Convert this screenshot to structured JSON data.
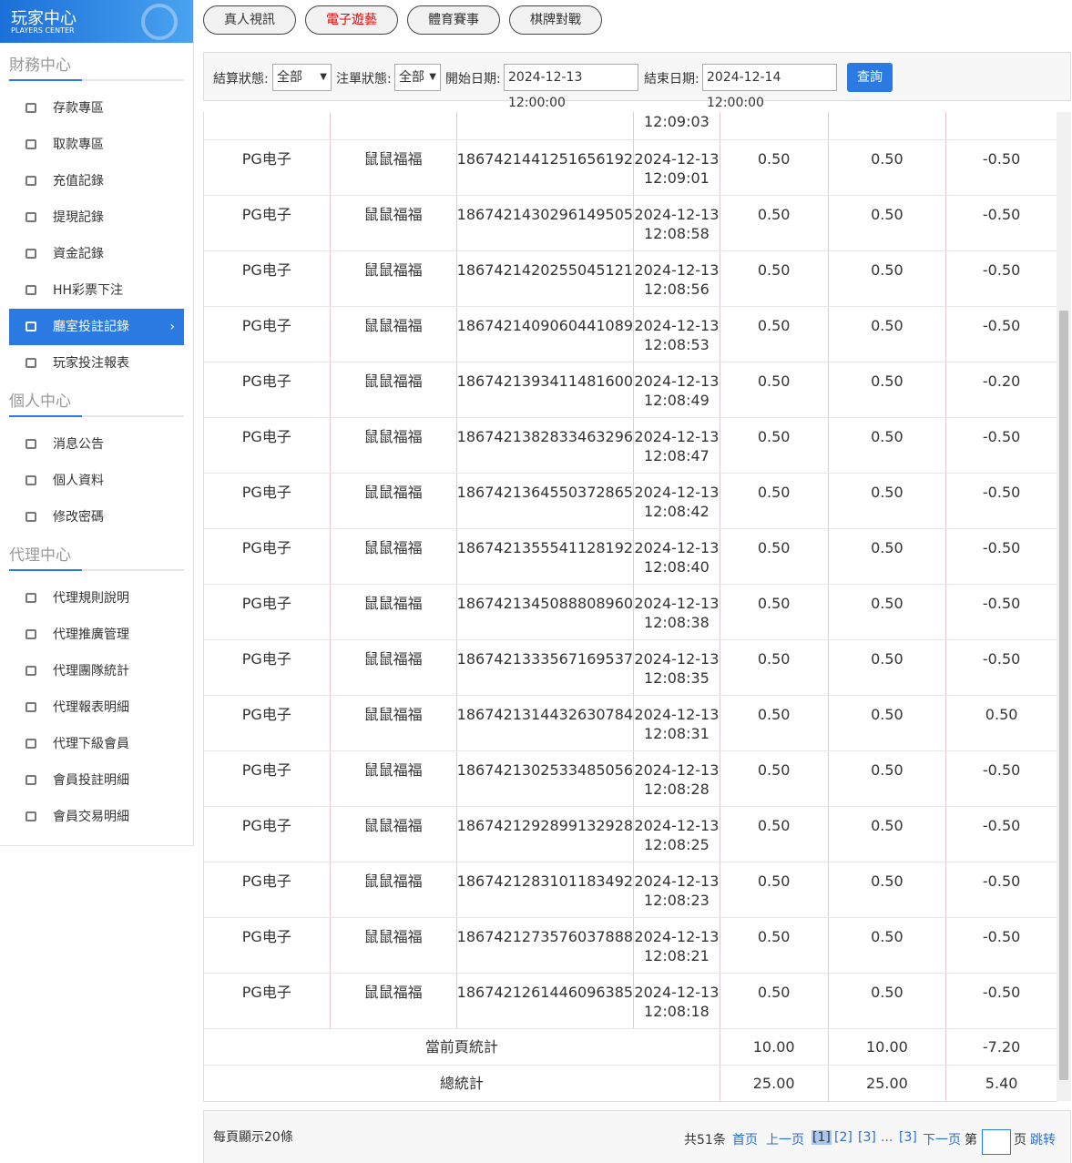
{
  "sidebar": {
    "logo": {
      "title": "玩家中心",
      "subtitle": "PLAYERS CENTER"
    },
    "sections": [
      {
        "title": "財務中心",
        "items": [
          "存款專區",
          "取款專區",
          "充值記錄",
          "提現記錄",
          "資金記錄",
          "HH彩票下注",
          "廳室投註記錄",
          "玩家投注報表"
        ],
        "active": 6
      },
      {
        "title": "個人中心",
        "items": [
          "消息公告",
          "個人資料",
          "修改密碼"
        ]
      },
      {
        "title": "代理中心",
        "items": [
          "代理規則說明",
          "代理推廣管理",
          "代理團隊統計",
          "代理報表明細",
          "代理下級會員",
          "會員投註明細",
          "會員交易明細"
        ]
      }
    ]
  },
  "tabs": {
    "items": [
      "真人視訊",
      "電子遊藝",
      "體育賽事",
      "棋牌對戰"
    ],
    "active": 1
  },
  "filters": {
    "settle_label": "結算狀態:",
    "settle_value": "全部",
    "status_label": "注單狀態:",
    "status_value": "全部",
    "start_label": "開始日期:",
    "start_value": "2024-12-13 12:00:00",
    "end_label": "結束日期:",
    "end_value": "2024-12-14 12:00:00",
    "button": "查詢"
  },
  "table": {
    "partial_row_time": "12:09:03",
    "rows": [
      [
        "PG电子",
        "鼠鼠福福",
        "1867421441251656192",
        "2024-12-13 12:09:01",
        "0.50",
        "0.50",
        "-0.50"
      ],
      [
        "PG电子",
        "鼠鼠福福",
        "1867421430296149505",
        "2024-12-13 12:08:58",
        "0.50",
        "0.50",
        "-0.50"
      ],
      [
        "PG电子",
        "鼠鼠福福",
        "1867421420255045121",
        "2024-12-13 12:08:56",
        "0.50",
        "0.50",
        "-0.50"
      ],
      [
        "PG电子",
        "鼠鼠福福",
        "1867421409060441089",
        "2024-12-13 12:08:53",
        "0.50",
        "0.50",
        "-0.50"
      ],
      [
        "PG电子",
        "鼠鼠福福",
        "1867421393411481600",
        "2024-12-13 12:08:49",
        "0.50",
        "0.50",
        "-0.20"
      ],
      [
        "PG电子",
        "鼠鼠福福",
        "1867421382833463296",
        "2024-12-13 12:08:47",
        "0.50",
        "0.50",
        "-0.50"
      ],
      [
        "PG电子",
        "鼠鼠福福",
        "1867421364550372865",
        "2024-12-13 12:08:42",
        "0.50",
        "0.50",
        "-0.50"
      ],
      [
        "PG电子",
        "鼠鼠福福",
        "1867421355541128192",
        "2024-12-13 12:08:40",
        "0.50",
        "0.50",
        "-0.50"
      ],
      [
        "PG电子",
        "鼠鼠福福",
        "1867421345088808960",
        "2024-12-13 12:08:38",
        "0.50",
        "0.50",
        "-0.50"
      ],
      [
        "PG电子",
        "鼠鼠福福",
        "1867421333567169537",
        "2024-12-13 12:08:35",
        "0.50",
        "0.50",
        "-0.50"
      ],
      [
        "PG电子",
        "鼠鼠福福",
        "1867421314432630784",
        "2024-12-13 12:08:31",
        "0.50",
        "0.50",
        "0.50"
      ],
      [
        "PG电子",
        "鼠鼠福福",
        "1867421302533485056",
        "2024-12-13 12:08:28",
        "0.50",
        "0.50",
        "-0.50"
      ],
      [
        "PG电子",
        "鼠鼠福福",
        "1867421292899132928",
        "2024-12-13 12:08:25",
        "0.50",
        "0.50",
        "-0.50"
      ],
      [
        "PG电子",
        "鼠鼠福福",
        "1867421283101183492",
        "2024-12-13 12:08:23",
        "0.50",
        "0.50",
        "-0.50"
      ],
      [
        "PG电子",
        "鼠鼠福福",
        "1867421273576037888",
        "2024-12-13 12:08:21",
        "0.50",
        "0.50",
        "-0.50"
      ],
      [
        "PG电子",
        "鼠鼠福福",
        "1867421261446096385",
        "2024-12-13 12:08:18",
        "0.50",
        "0.50",
        "-0.50"
      ]
    ],
    "summary": [
      {
        "label": "當前頁統計",
        "values": [
          "10.00",
          "10.00",
          "-7.20"
        ]
      },
      {
        "label": "總統計",
        "values": [
          "25.00",
          "25.00",
          "5.40"
        ]
      }
    ]
  },
  "pagination": {
    "page_size_text": "每頁顯示20條",
    "total": "共51条",
    "links": [
      "首页",
      "上一页",
      "[1]",
      "[2]",
      "[3]",
      "...",
      "[3]",
      "下一页"
    ],
    "current": 2,
    "goto": [
      "第",
      "页",
      "跳转"
    ]
  }
}
